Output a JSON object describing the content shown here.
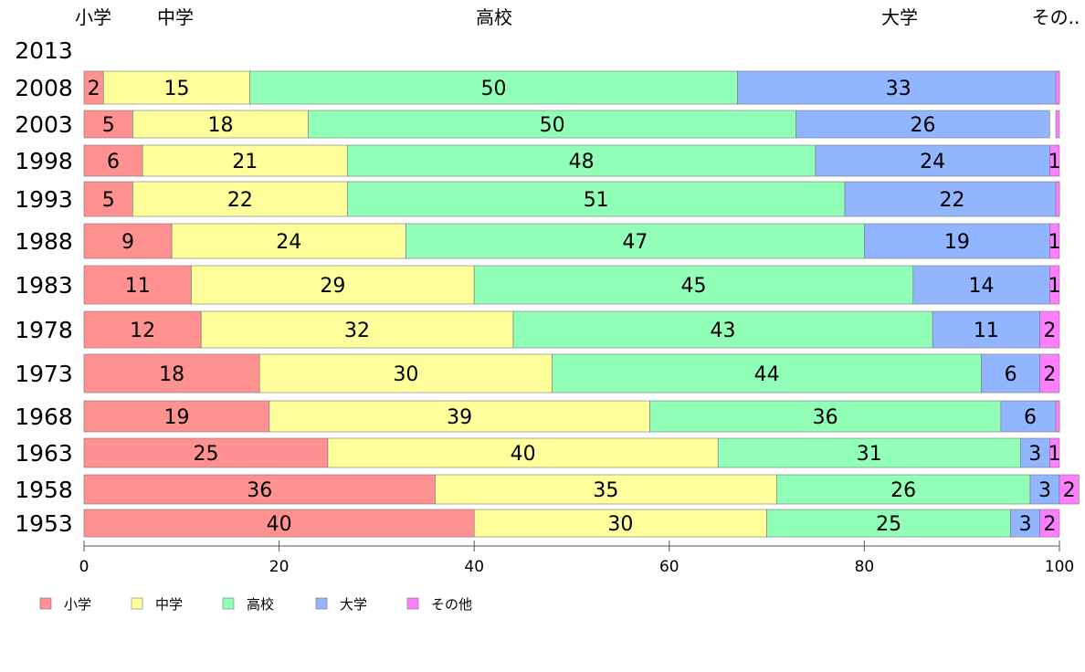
{
  "chart_data": {
    "type": "bar",
    "orientation": "horizontal",
    "stacked": true,
    "categories": [
      "2013",
      "2008",
      "2003",
      "1998",
      "1993",
      "1988",
      "1983",
      "1978",
      "1973",
      "1968",
      "1963",
      "1958",
      "1953"
    ],
    "series": [
      {
        "name": "小学",
        "color": "#ff9191",
        "values": [
          null,
          2,
          5,
          6,
          5,
          9,
          11,
          12,
          18,
          19,
          25,
          36,
          40
        ]
      },
      {
        "name": "中学",
        "color": "#ffff9c",
        "values": [
          null,
          15,
          18,
          21,
          22,
          24,
          29,
          32,
          30,
          39,
          40,
          35,
          30
        ]
      },
      {
        "name": "高校",
        "color": "#91ffb8",
        "values": [
          null,
          50,
          50,
          48,
          51,
          47,
          45,
          43,
          44,
          36,
          31,
          26,
          25
        ]
      },
      {
        "name": "大学",
        "color": "#91b5ff",
        "values": [
          null,
          33,
          26,
          24,
          22,
          19,
          14,
          11,
          6,
          6,
          3,
          3,
          3
        ]
      },
      {
        "name": "その他",
        "color": "#ff7dff",
        "values": [
          null,
          0,
          0,
          1,
          0,
          1,
          1,
          2,
          2,
          0,
          1,
          2,
          2
        ]
      }
    ],
    "top_labels": [
      "小学",
      "中学",
      "高校",
      "大学",
      "その.."
    ],
    "xlim": [
      0,
      100
    ],
    "xticks": [
      0,
      20,
      40,
      60,
      80,
      100
    ],
    "legend_position": "bottom-left",
    "grid": false
  }
}
